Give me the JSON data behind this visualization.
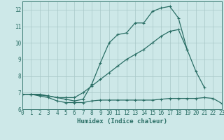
{
  "xlabel": "Humidex (Indice chaleur)",
  "x_values": [
    0,
    1,
    2,
    3,
    4,
    5,
    6,
    7,
    8,
    9,
    10,
    11,
    12,
    13,
    14,
    15,
    16,
    17,
    18,
    19,
    20,
    21,
    22,
    23
  ],
  "line1": [
    6.9,
    6.9,
    6.9,
    6.8,
    6.7,
    6.6,
    6.5,
    6.6,
    7.5,
    8.8,
    10.0,
    10.5,
    10.6,
    11.2,
    11.2,
    11.9,
    12.1,
    12.2,
    11.5,
    9.6,
    null,
    null,
    null,
    null
  ],
  "line2": [
    6.9,
    6.9,
    6.85,
    6.8,
    6.7,
    6.7,
    6.7,
    7.0,
    7.4,
    7.8,
    8.2,
    8.6,
    9.0,
    9.3,
    9.6,
    10.0,
    10.4,
    10.7,
    10.8,
    9.6,
    8.3,
    7.3,
    null,
    null
  ],
  "line3": [
    6.9,
    6.9,
    6.8,
    6.7,
    6.5,
    6.4,
    6.4,
    6.4,
    6.5,
    6.55,
    6.55,
    6.55,
    6.55,
    6.55,
    6.55,
    6.55,
    6.6,
    6.65,
    6.65,
    6.65,
    6.65,
    6.7,
    6.65,
    6.35
  ],
  "ylim": [
    6.0,
    12.5
  ],
  "xlim": [
    0,
    23
  ],
  "yticks": [
    6,
    7,
    8,
    9,
    10,
    11,
    12
  ],
  "xticks": [
    0,
    1,
    2,
    3,
    4,
    5,
    6,
    7,
    8,
    9,
    10,
    11,
    12,
    13,
    14,
    15,
    16,
    17,
    18,
    19,
    20,
    21,
    22,
    23
  ],
  "line_color": "#2a6e65",
  "bg_color": "#cde8e8",
  "grid_color": "#a8c8c8",
  "marker": "+",
  "markersize": 3,
  "linewidth": 0.9,
  "tick_fontsize": 5.5,
  "label_fontsize": 6.5
}
